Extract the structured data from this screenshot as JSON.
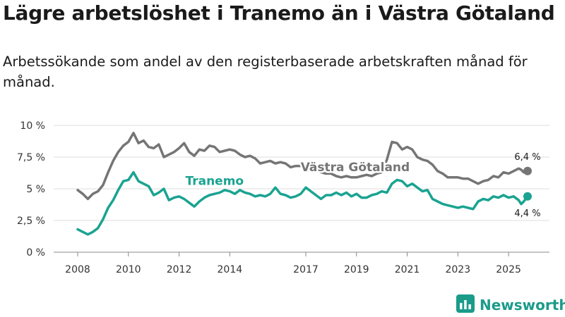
{
  "header": {
    "title": "Lägre arbetslöshet i Tranemo än i Västra Götaland",
    "subtitle": "Arbetssökande som andel av den registerbaserade arbetskraften månad för månad."
  },
  "brand": {
    "name": "Newsworthy",
    "icon": "newsworthy-logo-icon",
    "color": "#1b9b8a"
  },
  "chart_data": {
    "type": "line",
    "title": "Lägre arbetslöshet i Tranemo än i Västra Götaland",
    "subtitle": "Arbetssökande som andel av den registerbaserade arbetskraften månad för månad.",
    "xlabel": "",
    "ylabel": "",
    "xlim": [
      2008.0,
      2025.75
    ],
    "ylim": [
      0,
      10
    ],
    "grid": true,
    "y_ticks": [
      0,
      2.5,
      5,
      7.5,
      10
    ],
    "y_tick_labels": [
      "0 %",
      "2,5 %",
      "5 %",
      "7,5 %",
      "10 %"
    ],
    "x_ticks": [
      2008,
      2010,
      2012,
      2014,
      2017,
      2019,
      2021,
      2023,
      2025
    ],
    "x_tick_labels": [
      "2008",
      "2010",
      "2012",
      "2014",
      "2017",
      "2019",
      "2021",
      "2023",
      "2025"
    ],
    "series": [
      {
        "name": "Västra Götaland",
        "color": "#757575",
        "label_position": "middle",
        "end_label": "6,4 %",
        "points": [
          [
            2008.0,
            4.9
          ],
          [
            2008.2,
            4.6
          ],
          [
            2008.4,
            4.2
          ],
          [
            2008.6,
            4.6
          ],
          [
            2008.8,
            4.8
          ],
          [
            2009.0,
            5.3
          ],
          [
            2009.2,
            6.3
          ],
          [
            2009.4,
            7.2
          ],
          [
            2009.6,
            7.9
          ],
          [
            2009.8,
            8.4
          ],
          [
            2010.0,
            8.7
          ],
          [
            2010.2,
            9.4
          ],
          [
            2010.4,
            8.6
          ],
          [
            2010.6,
            8.8
          ],
          [
            2010.8,
            8.3
          ],
          [
            2011.0,
            8.2
          ],
          [
            2011.2,
            8.5
          ],
          [
            2011.4,
            7.5
          ],
          [
            2011.6,
            7.7
          ],
          [
            2011.8,
            7.9
          ],
          [
            2012.0,
            8.2
          ],
          [
            2012.2,
            8.6
          ],
          [
            2012.4,
            7.9
          ],
          [
            2012.6,
            7.6
          ],
          [
            2012.8,
            8.1
          ],
          [
            2013.0,
            8.0
          ],
          [
            2013.2,
            8.4
          ],
          [
            2013.4,
            8.3
          ],
          [
            2013.6,
            7.9
          ],
          [
            2013.8,
            8.0
          ],
          [
            2014.0,
            8.1
          ],
          [
            2014.2,
            8.0
          ],
          [
            2014.4,
            7.7
          ],
          [
            2014.6,
            7.5
          ],
          [
            2014.8,
            7.6
          ],
          [
            2015.0,
            7.4
          ],
          [
            2015.2,
            7.0
          ],
          [
            2015.4,
            7.1
          ],
          [
            2015.6,
            7.2
          ],
          [
            2015.8,
            7.0
          ],
          [
            2016.0,
            7.1
          ],
          [
            2016.2,
            7.0
          ],
          [
            2016.4,
            6.7
          ],
          [
            2016.6,
            6.8
          ],
          [
            2016.8,
            6.8
          ],
          [
            2017.0,
            6.9
          ],
          [
            2017.2,
            6.7
          ],
          [
            2017.4,
            6.5
          ],
          [
            2017.6,
            6.3
          ],
          [
            2017.8,
            6.2
          ],
          [
            2018.0,
            6.2
          ],
          [
            2018.2,
            6.0
          ],
          [
            2018.4,
            5.9
          ],
          [
            2018.6,
            6.0
          ],
          [
            2018.8,
            5.9
          ],
          [
            2019.0,
            5.9
          ],
          [
            2019.2,
            6.0
          ],
          [
            2019.4,
            6.1
          ],
          [
            2019.6,
            6.0
          ],
          [
            2019.8,
            6.2
          ],
          [
            2020.0,
            6.3
          ],
          [
            2020.2,
            7.3
          ],
          [
            2020.4,
            8.7
          ],
          [
            2020.6,
            8.6
          ],
          [
            2020.8,
            8.1
          ],
          [
            2021.0,
            8.3
          ],
          [
            2021.2,
            8.1
          ],
          [
            2021.4,
            7.5
          ],
          [
            2021.6,
            7.3
          ],
          [
            2021.8,
            7.2
          ],
          [
            2022.0,
            6.9
          ],
          [
            2022.2,
            6.4
          ],
          [
            2022.4,
            6.2
          ],
          [
            2022.6,
            5.9
          ],
          [
            2022.8,
            5.9
          ],
          [
            2023.0,
            5.9
          ],
          [
            2023.2,
            5.8
          ],
          [
            2023.4,
            5.8
          ],
          [
            2023.6,
            5.6
          ],
          [
            2023.8,
            5.4
          ],
          [
            2024.0,
            5.6
          ],
          [
            2024.2,
            5.7
          ],
          [
            2024.4,
            6.0
          ],
          [
            2024.6,
            5.9
          ],
          [
            2024.8,
            6.3
          ],
          [
            2025.0,
            6.2
          ],
          [
            2025.2,
            6.4
          ],
          [
            2025.4,
            6.6
          ],
          [
            2025.5,
            6.5
          ],
          [
            2025.6,
            6.3
          ],
          [
            2025.75,
            6.4
          ]
        ]
      },
      {
        "name": "Tranemo",
        "color": "#1aa391",
        "label_position": "middle",
        "end_label": "4,4 %",
        "points": [
          [
            2008.0,
            1.8
          ],
          [
            2008.2,
            1.6
          ],
          [
            2008.4,
            1.4
          ],
          [
            2008.6,
            1.6
          ],
          [
            2008.8,
            1.9
          ],
          [
            2009.0,
            2.6
          ],
          [
            2009.2,
            3.5
          ],
          [
            2009.4,
            4.1
          ],
          [
            2009.6,
            4.9
          ],
          [
            2009.8,
            5.6
          ],
          [
            2010.0,
            5.7
          ],
          [
            2010.2,
            6.3
          ],
          [
            2010.4,
            5.6
          ],
          [
            2010.6,
            5.4
          ],
          [
            2010.8,
            5.2
          ],
          [
            2011.0,
            4.5
          ],
          [
            2011.2,
            4.7
          ],
          [
            2011.4,
            5.0
          ],
          [
            2011.6,
            4.1
          ],
          [
            2011.8,
            4.3
          ],
          [
            2012.0,
            4.4
          ],
          [
            2012.2,
            4.2
          ],
          [
            2012.4,
            3.9
          ],
          [
            2012.6,
            3.6
          ],
          [
            2012.8,
            4.0
          ],
          [
            2013.0,
            4.3
          ],
          [
            2013.2,
            4.5
          ],
          [
            2013.4,
            4.6
          ],
          [
            2013.6,
            4.7
          ],
          [
            2013.8,
            4.9
          ],
          [
            2014.0,
            4.8
          ],
          [
            2014.2,
            4.6
          ],
          [
            2014.4,
            4.9
          ],
          [
            2014.6,
            4.7
          ],
          [
            2014.8,
            4.6
          ],
          [
            2015.0,
            4.4
          ],
          [
            2015.2,
            4.5
          ],
          [
            2015.4,
            4.4
          ],
          [
            2015.6,
            4.6
          ],
          [
            2015.8,
            5.1
          ],
          [
            2016.0,
            4.6
          ],
          [
            2016.2,
            4.5
          ],
          [
            2016.4,
            4.3
          ],
          [
            2016.6,
            4.4
          ],
          [
            2016.8,
            4.6
          ],
          [
            2017.0,
            5.1
          ],
          [
            2017.2,
            4.8
          ],
          [
            2017.4,
            4.5
          ],
          [
            2017.6,
            4.2
          ],
          [
            2017.8,
            4.5
          ],
          [
            2018.0,
            4.5
          ],
          [
            2018.2,
            4.7
          ],
          [
            2018.4,
            4.5
          ],
          [
            2018.6,
            4.7
          ],
          [
            2018.8,
            4.4
          ],
          [
            2019.0,
            4.6
          ],
          [
            2019.2,
            4.3
          ],
          [
            2019.4,
            4.3
          ],
          [
            2019.6,
            4.5
          ],
          [
            2019.8,
            4.6
          ],
          [
            2020.0,
            4.8
          ],
          [
            2020.2,
            4.7
          ],
          [
            2020.4,
            5.4
          ],
          [
            2020.6,
            5.7
          ],
          [
            2020.8,
            5.6
          ],
          [
            2021.0,
            5.2
          ],
          [
            2021.2,
            5.4
          ],
          [
            2021.4,
            5.1
          ],
          [
            2021.6,
            4.8
          ],
          [
            2021.8,
            4.9
          ],
          [
            2022.0,
            4.2
          ],
          [
            2022.2,
            4.0
          ],
          [
            2022.4,
            3.8
          ],
          [
            2022.6,
            3.7
          ],
          [
            2022.8,
            3.6
          ],
          [
            2023.0,
            3.5
          ],
          [
            2023.2,
            3.6
          ],
          [
            2023.4,
            3.5
          ],
          [
            2023.6,
            3.4
          ],
          [
            2023.8,
            4.0
          ],
          [
            2024.0,
            4.2
          ],
          [
            2024.2,
            4.1
          ],
          [
            2024.4,
            4.4
          ],
          [
            2024.6,
            4.3
          ],
          [
            2024.8,
            4.5
          ],
          [
            2025.0,
            4.3
          ],
          [
            2025.2,
            4.4
          ],
          [
            2025.4,
            4.1
          ],
          [
            2025.5,
            3.8
          ],
          [
            2025.6,
            4.0
          ],
          [
            2025.75,
            4.4
          ]
        ]
      }
    ]
  }
}
